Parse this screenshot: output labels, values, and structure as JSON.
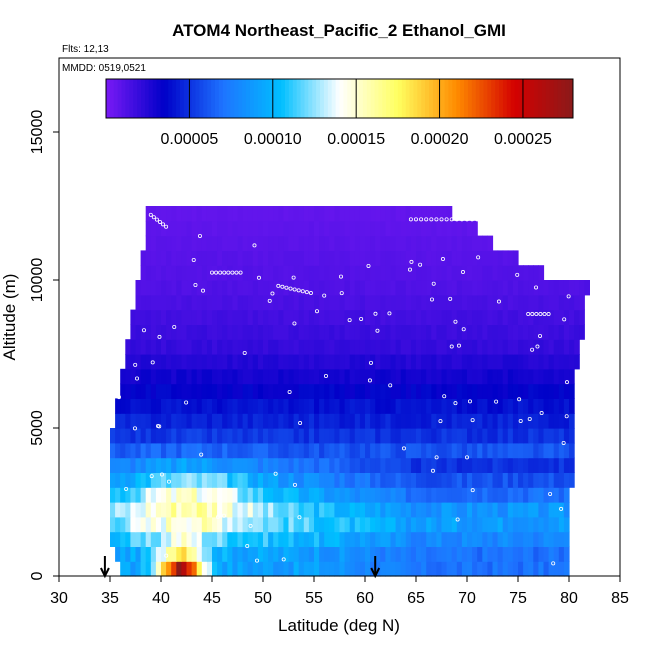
{
  "chart_data": {
    "type": "heatmap",
    "title": "ATOM4 Northeast_Pacific_2 Ethanol_GMI",
    "subtitle_flights": "Flts: 12,13",
    "subtitle_dates": "MMDD: 0519,0521",
    "xlabel": "Latitude (deg N)",
    "ylabel": "Altitude (m)",
    "xlim": [
      30,
      85
    ],
    "ylim": [
      0,
      17500
    ],
    "x_ticks": [
      "30",
      "35",
      "40",
      "45",
      "50",
      "55",
      "60",
      "65",
      "70",
      "75",
      "80",
      "85"
    ],
    "y_ticks": [
      "0",
      "5000",
      "10000",
      "15000"
    ],
    "colorbar": {
      "range": [
        0,
        0.00028
      ],
      "tick_labels": [
        "0.00005",
        "0.00010",
        "0.00015",
        "0.00020",
        "0.00025"
      ],
      "colors": [
        "#7a1af5",
        "#0000c8",
        "#1e73ff",
        "#00bfff",
        "#ffffff",
        "#ffff60",
        "#ff8c00",
        "#d40000",
        "#8b1a1a"
      ]
    },
    "altitude_bins_m": [
      250,
      750,
      1250,
      1750,
      2250,
      2750,
      3250,
      3750,
      4250,
      4750,
      5250,
      5750,
      6250,
      6750,
      7250,
      7750,
      8250,
      8750,
      9250,
      9750,
      10250,
      10750,
      11250,
      11750,
      12250
    ],
    "lat_extent": {
      "min": [
        36,
        35.5,
        35,
        35,
        35,
        35,
        35,
        35,
        35,
        35,
        35.5,
        35.5,
        36,
        36,
        36.5,
        36.5,
        37,
        37,
        37.5,
        37.5,
        38,
        38,
        38.5,
        38.5,
        38.5
      ],
      "max": [
        80,
        80,
        80,
        80,
        80,
        80,
        80.5,
        80.5,
        80.5,
        80.5,
        80.5,
        80.5,
        80.5,
        80.5,
        81,
        81,
        81.5,
        81.5,
        81.5,
        82,
        77.5,
        75,
        72.5,
        71,
        68.5
      ]
    },
    "profile": {
      "base": [
        9e-05,
        9e-05,
        0.0001,
        0.00011,
        0.000105,
        9e-05,
        8e-05,
        7e-05,
        6e-05,
        5e-05,
        4.5e-05,
        4e-05,
        3.5e-05,
        3e-05,
        2.5e-05,
        2e-05,
        1.8e-05,
        1.6e-05,
        1.4e-05,
        1.2e-05,
        1.1e-05,
        1e-05,
        9e-06,
        8e-06,
        7e-06
      ],
      "plume_peak_latitude": 42,
      "plume_peak_value": 0.00028
    },
    "flight_markers_latitude": [
      34.5,
      61
    ],
    "legend_position": "top",
    "grid": false
  }
}
